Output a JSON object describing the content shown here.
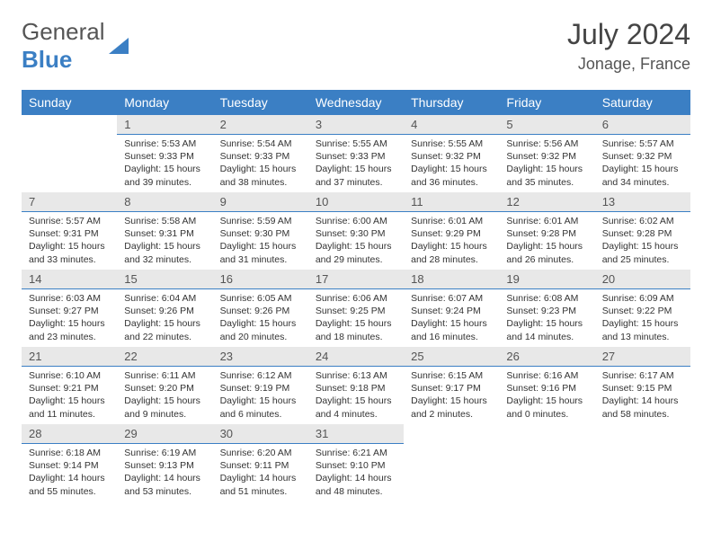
{
  "brand": {
    "name_part1": "General",
    "name_part2": "Blue"
  },
  "header": {
    "title": "July 2024",
    "location": "Jonage, France"
  },
  "colors": {
    "accent": "#3b7fc4",
    "daynum_bg": "#e8e8e8",
    "text": "#333333"
  },
  "weekdays": [
    "Sunday",
    "Monday",
    "Tuesday",
    "Wednesday",
    "Thursday",
    "Friday",
    "Saturday"
  ],
  "start_offset": 1,
  "days": [
    {
      "n": "1",
      "sunrise": "5:53 AM",
      "sunset": "9:33 PM",
      "daylight": "15 hours and 39 minutes."
    },
    {
      "n": "2",
      "sunrise": "5:54 AM",
      "sunset": "9:33 PM",
      "daylight": "15 hours and 38 minutes."
    },
    {
      "n": "3",
      "sunrise": "5:55 AM",
      "sunset": "9:33 PM",
      "daylight": "15 hours and 37 minutes."
    },
    {
      "n": "4",
      "sunrise": "5:55 AM",
      "sunset": "9:32 PM",
      "daylight": "15 hours and 36 minutes."
    },
    {
      "n": "5",
      "sunrise": "5:56 AM",
      "sunset": "9:32 PM",
      "daylight": "15 hours and 35 minutes."
    },
    {
      "n": "6",
      "sunrise": "5:57 AM",
      "sunset": "9:32 PM",
      "daylight": "15 hours and 34 minutes."
    },
    {
      "n": "7",
      "sunrise": "5:57 AM",
      "sunset": "9:31 PM",
      "daylight": "15 hours and 33 minutes."
    },
    {
      "n": "8",
      "sunrise": "5:58 AM",
      "sunset": "9:31 PM",
      "daylight": "15 hours and 32 minutes."
    },
    {
      "n": "9",
      "sunrise": "5:59 AM",
      "sunset": "9:30 PM",
      "daylight": "15 hours and 31 minutes."
    },
    {
      "n": "10",
      "sunrise": "6:00 AM",
      "sunset": "9:30 PM",
      "daylight": "15 hours and 29 minutes."
    },
    {
      "n": "11",
      "sunrise": "6:01 AM",
      "sunset": "9:29 PM",
      "daylight": "15 hours and 28 minutes."
    },
    {
      "n": "12",
      "sunrise": "6:01 AM",
      "sunset": "9:28 PM",
      "daylight": "15 hours and 26 minutes."
    },
    {
      "n": "13",
      "sunrise": "6:02 AM",
      "sunset": "9:28 PM",
      "daylight": "15 hours and 25 minutes."
    },
    {
      "n": "14",
      "sunrise": "6:03 AM",
      "sunset": "9:27 PM",
      "daylight": "15 hours and 23 minutes."
    },
    {
      "n": "15",
      "sunrise": "6:04 AM",
      "sunset": "9:26 PM",
      "daylight": "15 hours and 22 minutes."
    },
    {
      "n": "16",
      "sunrise": "6:05 AM",
      "sunset": "9:26 PM",
      "daylight": "15 hours and 20 minutes."
    },
    {
      "n": "17",
      "sunrise": "6:06 AM",
      "sunset": "9:25 PM",
      "daylight": "15 hours and 18 minutes."
    },
    {
      "n": "18",
      "sunrise": "6:07 AM",
      "sunset": "9:24 PM",
      "daylight": "15 hours and 16 minutes."
    },
    {
      "n": "19",
      "sunrise": "6:08 AM",
      "sunset": "9:23 PM",
      "daylight": "15 hours and 14 minutes."
    },
    {
      "n": "20",
      "sunrise": "6:09 AM",
      "sunset": "9:22 PM",
      "daylight": "15 hours and 13 minutes."
    },
    {
      "n": "21",
      "sunrise": "6:10 AM",
      "sunset": "9:21 PM",
      "daylight": "15 hours and 11 minutes."
    },
    {
      "n": "22",
      "sunrise": "6:11 AM",
      "sunset": "9:20 PM",
      "daylight": "15 hours and 9 minutes."
    },
    {
      "n": "23",
      "sunrise": "6:12 AM",
      "sunset": "9:19 PM",
      "daylight": "15 hours and 6 minutes."
    },
    {
      "n": "24",
      "sunrise": "6:13 AM",
      "sunset": "9:18 PM",
      "daylight": "15 hours and 4 minutes."
    },
    {
      "n": "25",
      "sunrise": "6:15 AM",
      "sunset": "9:17 PM",
      "daylight": "15 hours and 2 minutes."
    },
    {
      "n": "26",
      "sunrise": "6:16 AM",
      "sunset": "9:16 PM",
      "daylight": "15 hours and 0 minutes."
    },
    {
      "n": "27",
      "sunrise": "6:17 AM",
      "sunset": "9:15 PM",
      "daylight": "14 hours and 58 minutes."
    },
    {
      "n": "28",
      "sunrise": "6:18 AM",
      "sunset": "9:14 PM",
      "daylight": "14 hours and 55 minutes."
    },
    {
      "n": "29",
      "sunrise": "6:19 AM",
      "sunset": "9:13 PM",
      "daylight": "14 hours and 53 minutes."
    },
    {
      "n": "30",
      "sunrise": "6:20 AM",
      "sunset": "9:11 PM",
      "daylight": "14 hours and 51 minutes."
    },
    {
      "n": "31",
      "sunrise": "6:21 AM",
      "sunset": "9:10 PM",
      "daylight": "14 hours and 48 minutes."
    }
  ],
  "labels": {
    "sunrise": "Sunrise:",
    "sunset": "Sunset:",
    "daylight": "Daylight:"
  }
}
